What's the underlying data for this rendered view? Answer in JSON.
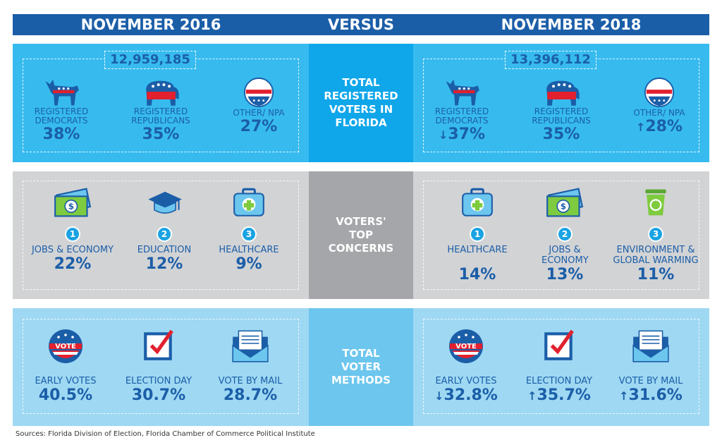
{
  "header": {
    "left": "NOVEMBER 2016",
    "middle": "VERSUS",
    "right": "NOVEMBER 2018"
  },
  "registered": {
    "label": "TOTAL REGISTERED VOTERS IN FLORIDA",
    "y2016": {
      "total": "12,959,185",
      "items": [
        {
          "label": "REGISTERED DEMOCRATS",
          "value": "38%",
          "arrow": ""
        },
        {
          "label": "REGISTERED REPUBLICANS",
          "value": "35%",
          "arrow": ""
        },
        {
          "label": "OTHER/ NPA",
          "value": "27%",
          "arrow": ""
        }
      ]
    },
    "y2018": {
      "total": "13,396,112",
      "items": [
        {
          "label": "REGISTERED DEMOCRATS",
          "value": "37%",
          "arrow": "↓"
        },
        {
          "label": "REGISTERED REPUBLICANS",
          "value": "35%",
          "arrow": ""
        },
        {
          "label": "OTHER/ NPA",
          "value": "28%",
          "arrow": "↑"
        }
      ]
    }
  },
  "concerns": {
    "label": "VOTERS' TOP CONCERNS",
    "y2016": [
      {
        "rank": "1",
        "label": "JOBS & ECONOMY",
        "value": "22%",
        "icon": "money-icon"
      },
      {
        "rank": "2",
        "label": "EDUCATION",
        "value": "12%",
        "icon": "graduation-cap-icon"
      },
      {
        "rank": "3",
        "label": "HEALTHCARE",
        "value": "9%",
        "icon": "medical-kit-icon"
      }
    ],
    "y2018": [
      {
        "rank": "1",
        "label": "HEALTHCARE",
        "value": "14%",
        "icon": "medical-kit-icon"
      },
      {
        "rank": "2",
        "label": "JOBS & ECONOMY",
        "value": "13%",
        "icon": "money-icon"
      },
      {
        "rank": "3",
        "label": "ENVIRONMENT & GLOBAL WARMING",
        "value": "11%",
        "icon": "recycle-bin-icon"
      }
    ]
  },
  "methods": {
    "label": "TOTAL VOTER METHODS",
    "y2016": [
      {
        "label": "EARLY VOTES",
        "value": "40.5%",
        "arrow": ""
      },
      {
        "label": "ELECTION DAY",
        "value": "30.7%",
        "arrow": ""
      },
      {
        "label": "VOTE BY MAIL",
        "value": "28.7%",
        "arrow": ""
      }
    ],
    "y2018": [
      {
        "label": "EARLY VOTES",
        "value": "32.8%",
        "arrow": "↓"
      },
      {
        "label": "ELECTION DAY",
        "value": "35.7%",
        "arrow": "↑"
      },
      {
        "label": "VOTE BY MAIL",
        "value": "31.6%",
        "arrow": "↑"
      }
    ]
  },
  "vote_badge_text": "VOTE",
  "source": "Sources: Florida Division of Election, Florida Chamber of Commerce Political Institute",
  "colors": {
    "dark_blue": "#1b5ea8",
    "red": "#e2202e",
    "light_blue": "#37bbef",
    "gray": "#d2d3d5"
  }
}
